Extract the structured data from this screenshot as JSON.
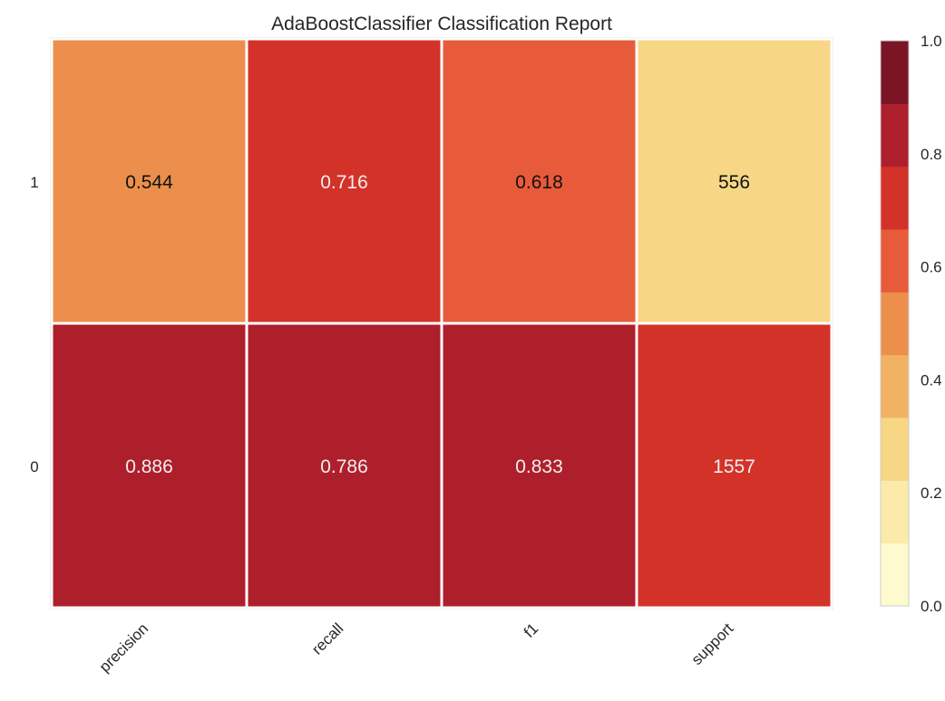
{
  "chart_data": {
    "type": "heatmap",
    "title": "AdaBoostClassifier Classification Report",
    "xlabel": "",
    "ylabel": "",
    "columns": [
      "precision",
      "recall",
      "f1",
      "support"
    ],
    "rows": [
      "1",
      "0"
    ],
    "cells": [
      [
        "0.544",
        "0.716",
        "0.618",
        "556"
      ],
      [
        "0.886",
        "0.786",
        "0.833",
        "1557"
      ]
    ],
    "color_values": [
      [
        0.544,
        0.716,
        0.618,
        0.263
      ],
      [
        0.886,
        0.786,
        0.833,
        0.737
      ]
    ],
    "colorbar": {
      "range": [
        0.0,
        1.0
      ],
      "ticks": [
        "0.0",
        "0.2",
        "0.4",
        "0.6",
        "0.8",
        "1.0"
      ],
      "colors": [
        "#ffffcc",
        "#ffeda0",
        "#fed976",
        "#feb24c",
        "#fd8d3c",
        "#fc4e2a",
        "#e31a1c",
        "#bd0026",
        "#800026"
      ]
    },
    "palette": {
      "bins": [
        "#fdfbcd",
        "#fbeaaa",
        "#f7d785",
        "#f1b363",
        "#ed8f4c",
        "#e85b3a",
        "#d33229",
        "#ae1f2c",
        "#7b1526"
      ],
      "text_dark": "#111111",
      "text_light": "#f3eeee",
      "grid_line": "#ffffff",
      "frame": "#cccccc"
    }
  }
}
